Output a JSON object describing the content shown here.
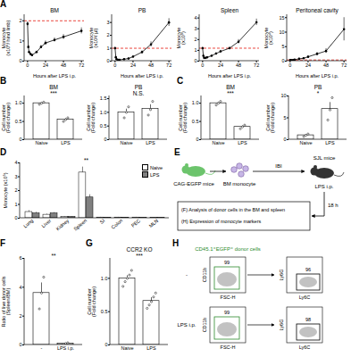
{
  "chart_data": [
    {
      "type": "line",
      "panel": "A",
      "title": "BM",
      "xlabel": "Hours after LPS i.p.",
      "ylabel": "Monocyte\n(x10⁶/ hind limb)",
      "x": [
        0,
        1,
        2,
        4,
        6,
        12,
        18,
        24,
        36,
        48,
        72
      ],
      "values": [
        1.85,
        0.7,
        0.45,
        0.35,
        0.3,
        0.45,
        0.7,
        0.9,
        1.05,
        1.2,
        1.5
      ],
      "errors": [
        0.1,
        0.08,
        0.05,
        0.05,
        0.04,
        0.05,
        0.08,
        0.1,
        0.1,
        0.12,
        0.15
      ],
      "color": "#000000",
      "reference_line": {
        "value": 2,
        "color": "#e8332a",
        "line_style": "dashed"
      },
      "xlim": [
        -4,
        76
      ],
      "xticks": [
        0,
        24,
        48,
        72
      ],
      "ylim": [
        0,
        2.3
      ],
      "yticks": [
        0,
        1,
        2
      ]
    },
    {
      "type": "line",
      "title": "PB",
      "xlabel": "Hours after LPS i.p.",
      "ylabel": "Monocyte\n(x10²/ µl)",
      "x": [
        0,
        1,
        2,
        4,
        6,
        12,
        18,
        24,
        36,
        48,
        72
      ],
      "values": [
        1.0,
        0.3,
        0.15,
        0.1,
        0.1,
        0.15,
        0.2,
        0.35,
        0.7,
        1.3,
        3.0
      ],
      "errors": [
        0.1,
        0.05,
        0.03,
        0.02,
        0.02,
        0.03,
        0.05,
        0.08,
        0.1,
        0.2,
        0.3
      ],
      "color": "#000000",
      "reference_line": {
        "value": 1,
        "color": "#e8332a",
        "line_style": "dashed"
      },
      "xlim": [
        -4,
        76
      ],
      "xticks": [
        0,
        24,
        48,
        72
      ],
      "ylim": [
        0,
        3.6
      ],
      "yticks": [
        0,
        1,
        2,
        3
      ]
    },
    {
      "type": "line",
      "title": "Spleen",
      "xlabel": "Hours after LPS i.p.",
      "ylabel": "Monocyte\n(x10⁵)",
      "x": [
        0,
        1,
        2,
        4,
        6,
        12,
        18,
        24,
        36,
        48,
        72
      ],
      "values": [
        1.2,
        0.5,
        0.3,
        0.3,
        0.35,
        0.5,
        0.7,
        0.9,
        1.2,
        1.8,
        3.6
      ],
      "errors": [
        0.1,
        0.05,
        0.04,
        0.04,
        0.05,
        0.05,
        0.08,
        0.1,
        0.12,
        0.2,
        0.3
      ],
      "color": "#000000",
      "reference_line": {
        "value": 1.2,
        "color": "#e8332a",
        "line_style": "dashed"
      },
      "xlim": [
        -4,
        76
      ],
      "xticks": [
        0,
        24,
        48,
        72
      ],
      "ylim": [
        0,
        4.3
      ],
      "yticks": [
        0,
        1,
        2,
        3,
        4
      ]
    },
    {
      "type": "line",
      "title": "Peritoneal cavity",
      "xlabel": "Hours after LPS i.p.",
      "ylabel": "Monocyte\n(x10⁴)",
      "x": [
        0,
        1,
        2,
        4,
        6,
        12,
        18,
        24,
        36,
        48,
        72
      ],
      "values": [
        0.4,
        0.3,
        0.3,
        0.4,
        0.5,
        0.8,
        1.0,
        1.5,
        2.5,
        3.5,
        11
      ],
      "errors": [
        0.1,
        0.1,
        0.1,
        0.1,
        0.1,
        0.2,
        0.2,
        0.3,
        0.5,
        0.8,
        4
      ],
      "color": "#000000",
      "reference_line": {
        "value": 0.4,
        "color": "#e8332a",
        "line_style": "dashed"
      },
      "xlim": [
        -4,
        76
      ],
      "xticks": [
        0,
        24,
        48,
        72
      ],
      "ylim": [
        0,
        16
      ],
      "yticks": [
        0,
        5,
        10,
        15
      ]
    },
    {
      "type": "bar",
      "panel": "B",
      "title": "BM",
      "ylabel": "Cell number\n(Fold change)",
      "annotation": "***",
      "categories": [
        "Naive",
        "LPS"
      ],
      "values": [
        1.0,
        0.55
      ],
      "errors": [
        0.02,
        0.03
      ],
      "points": [
        [
          0.97,
          1.0,
          1.03
        ],
        [
          0.5,
          0.55,
          0.6
        ]
      ],
      "colors": [
        "#ffffff",
        "#ffffff"
      ],
      "ylim": [
        0,
        1.2
      ],
      "yticks": [
        0,
        0.5,
        {
          "value": 1,
          "label": "1.0"
        }
      ]
    },
    {
      "type": "bar",
      "title": "PB",
      "ylabel": "Cell number\n(Fold change)",
      "annotation": "N.S.",
      "categories": [
        "Naive",
        "LPS"
      ],
      "values": [
        1.0,
        1.13
      ],
      "errors": [
        0.12,
        0.15
      ],
      "points": [
        [
          0.8,
          1.0,
          1.2
        ],
        [
          0.9,
          1.1,
          1.4
        ]
      ],
      "colors": [
        "#ffffff",
        "#ffffff"
      ],
      "ylim": [
        0,
        1.6
      ],
      "yticks": [
        0,
        0.5,
        {
          "value": 1,
          "label": "1.0"
        },
        1.5
      ]
    },
    {
      "type": "bar",
      "panel": "C",
      "title": "BM",
      "ylabel": "Cell number\n(Fold change)",
      "annotation": "***",
      "categories": [
        "Naive",
        "LPS"
      ],
      "values": [
        1.0,
        0.35
      ],
      "errors": [
        0.03,
        0.03
      ],
      "points": [
        [
          0.95,
          1.0,
          1.05
        ],
        [
          0.3,
          0.35,
          0.4
        ]
      ],
      "colors": [
        "#ffffff",
        "#ffffff"
      ],
      "ylim": [
        0,
        1.2
      ],
      "yticks": [
        0,
        0.5,
        {
          "value": 1,
          "label": "1.0"
        }
      ]
    },
    {
      "type": "bar",
      "title": "PB",
      "ylabel": "Cell number\n(Fold change)",
      "annotation": "*",
      "categories": [
        "Naive",
        "LPS"
      ],
      "values": [
        1.0,
        7.0
      ],
      "errors": [
        0.2,
        1.5
      ],
      "points": [
        [
          0.7,
          1.0,
          1.3
        ],
        [
          4.5,
          6.8,
          9.6
        ]
      ],
      "colors": [
        "#ffffff",
        "#ffffff"
      ],
      "ylim": [
        0,
        10
      ],
      "yticks": [
        0,
        5,
        10
      ]
    },
    {
      "type": "bar",
      "panel": "D",
      "ylabel": "Monocyte (x10⁵)",
      "legend": "top-right",
      "categories": [
        "Lung",
        "Liver",
        "Kidney",
        "Spleen",
        "SI",
        "Colon",
        "PEC",
        "MLN"
      ],
      "series": [
        {
          "name": "Naive",
          "color": "#ffffff",
          "values": [
            0.45,
            0.25,
            0.1,
            3.3,
            0.05,
            0.05,
            0.05,
            0.02
          ],
          "errors": [
            0.1,
            0.05,
            0.03,
            0.4,
            0.02,
            0.02,
            0.02,
            0.01
          ]
        },
        {
          "name": "LPS",
          "color": "#808080",
          "values": [
            0.35,
            0.35,
            0.1,
            1.5,
            0.04,
            0.04,
            0.03,
            0.02
          ],
          "errors": [
            0.08,
            0.06,
            0.03,
            0.2,
            0.02,
            0.02,
            0.01,
            0.01
          ]
        }
      ],
      "annotations": [
        {
          "category": "Spleen",
          "text": "**"
        }
      ],
      "ylim": [
        0,
        4
      ],
      "yticks": [
        0,
        1,
        2,
        3,
        4
      ]
    },
    {
      "type": "bar",
      "panel": "F",
      "ylabel": "Ratio of live donor cells\n(Spleen/BM)",
      "annotation": "**",
      "categories": [
        "-",
        "LPS i.p."
      ],
      "values": [
        3.6,
        0.1
      ],
      "errors": [
        0.7,
        0.03
      ],
      "points": [
        [
          2.5,
          3.6,
          4.7
        ],
        [
          0.05,
          0.1,
          0.15
        ]
      ],
      "colors": [
        "#ffffff",
        "#ffffff"
      ],
      "ylim": [
        0,
        6
      ],
      "yticks": [
        0,
        2,
        4,
        6
      ]
    },
    {
      "type": "bar",
      "panel": "G",
      "title": "CCR2 KO",
      "ylabel": "Cell number\n(Fold change)",
      "annotation": "***",
      "categories": [
        "Naive",
        "LPS"
      ],
      "values": [
        1.0,
        0.66
      ],
      "errors": [
        0.04,
        0.05
      ],
      "points": [
        [
          0.88,
          0.95,
          1.0,
          1.05,
          1.12
        ],
        [
          0.55,
          0.6,
          0.65,
          0.72,
          0.78
        ]
      ],
      "colors": [
        "#ffffff",
        "#ffffff"
      ],
      "ylim": [
        0,
        1.3
      ],
      "yticks": [
        0,
        0.5,
        {
          "value": 1,
          "label": "1.0"
        }
      ]
    }
  ],
  "diagram": {
    "panel": "E",
    "nodes": [
      {
        "label": "CAG-EGFP mice"
      },
      {
        "label": "BM monocyte"
      },
      {
        "label": "SJL mice"
      }
    ],
    "edges": [
      {
        "label": "IBI"
      },
      {
        "label": "LPS i.p."
      },
      {
        "label": "18 h"
      }
    ],
    "box": [
      "(F) Analysis of donor cells in the BM and spleen",
      "(H) Expression of monocyte markers"
    ]
  },
  "flow": {
    "panel": "H",
    "population": "CD45.1⁺EGFP⁺ donor cells",
    "axes": [
      {
        "x": "FSC-H",
        "y": "CD11b"
      },
      {
        "x": "Ly6C",
        "y": "Ly6G"
      }
    ],
    "rows": [
      {
        "condition": "-",
        "gates": [
          99,
          96
        ]
      },
      {
        "condition": "LPS i.p.",
        "gates": [
          99,
          98
        ]
      }
    ]
  }
}
